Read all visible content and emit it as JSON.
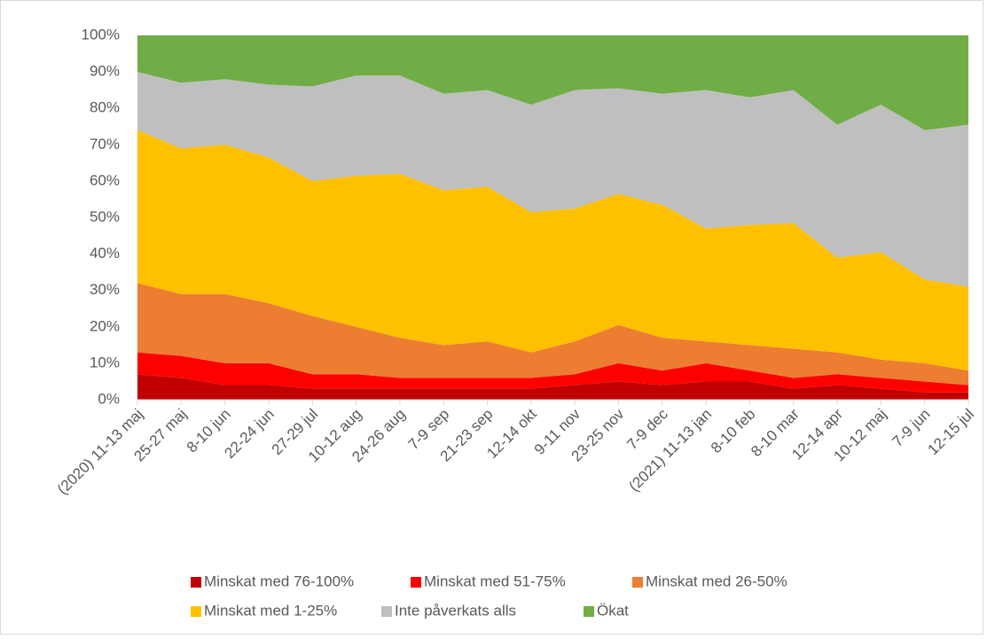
{
  "chart_data": {
    "type": "stacked_area",
    "categories": [
      "(2020) 11-13 maj",
      "25-27 maj",
      "8-10 jun",
      "22-24 jun",
      "27-29 jul",
      "10-12 aug",
      "24-26 aug",
      "7-9 sep",
      "21-23 sep",
      "12-14 okt",
      "9-11 nov",
      "23-25 nov",
      "7-9 dec",
      "(2021) 11-13 jan",
      "8-10 feb",
      "8-10 mar",
      "12-14 apr",
      "10-12 maj",
      "7-9 jun",
      "12-15 jul"
    ],
    "series": [
      {
        "name": "Minskat med 76-100%",
        "color": "#c00000",
        "values": [
          7,
          6,
          4,
          4,
          3,
          3,
          3,
          3,
          3,
          3,
          4,
          5,
          4,
          5,
          5,
          3,
          4,
          3,
          2,
          2
        ]
      },
      {
        "name": "Minskat med 51-75%",
        "color": "#ff0000",
        "values": [
          6,
          6,
          6,
          6,
          4,
          4,
          3,
          3,
          3,
          3,
          3,
          5,
          4,
          5,
          3,
          3,
          3,
          3,
          3,
          2
        ]
      },
      {
        "name": "Minskat med 26-50%",
        "color": "#ed7d31",
        "values": [
          19,
          17,
          19,
          16.5,
          16,
          13,
          11,
          9,
          10,
          7,
          9,
          10.5,
          9,
          6,
          7,
          8,
          6,
          5,
          5,
          4
        ]
      },
      {
        "name": "Minskat med 1-25%",
        "color": "#ffc000",
        "values": [
          42,
          40,
          41,
          40,
          37,
          41.5,
          45,
          42.5,
          42.5,
          38.5,
          36.5,
          36,
          36.5,
          31,
          33,
          34.5,
          26,
          29.5,
          23,
          23
        ]
      },
      {
        "name": "Inte påverkats alls",
        "color": "#bfbfbf",
        "values": [
          16,
          18,
          18,
          20,
          26,
          27.5,
          27,
          26.5,
          26.5,
          29.5,
          32.5,
          29,
          30.5,
          38,
          35,
          36.5,
          36.5,
          40.5,
          41,
          44.5
        ]
      },
      {
        "name": "Ökat",
        "color": "#70ad47",
        "values": [
          10,
          13,
          12,
          13.5,
          14,
          11,
          11,
          16,
          15,
          19,
          15,
          14.5,
          16,
          15,
          17,
          15,
          24.5,
          19,
          26,
          24.5
        ]
      }
    ],
    "ylim": [
      0,
      100
    ],
    "yticks": [
      {
        "value": 0,
        "label": "0%"
      },
      {
        "value": 10,
        "label": "10%"
      },
      {
        "value": 20,
        "label": "20%"
      },
      {
        "value": 30,
        "label": "30%"
      },
      {
        "value": 40,
        "label": "40%"
      },
      {
        "value": 50,
        "label": "50%"
      },
      {
        "value": 60,
        "label": "60%"
      },
      {
        "value": 70,
        "label": "70%"
      },
      {
        "value": 80,
        "label": "80%"
      },
      {
        "value": 90,
        "label": "90%"
      },
      {
        "value": 100,
        "label": "100%"
      }
    ],
    "grid": true
  }
}
